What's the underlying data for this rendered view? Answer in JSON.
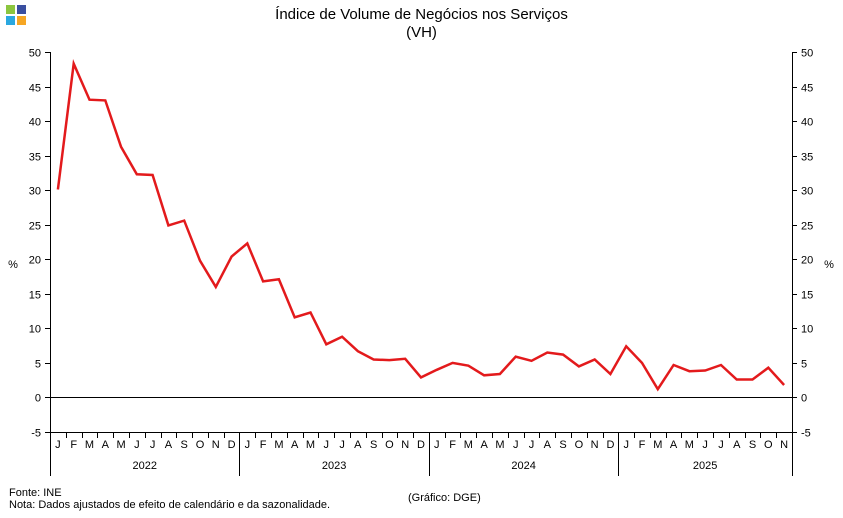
{
  "title": "Índice de Volume de Negócios nos Serviços",
  "subtitle": "(VH)",
  "source": "Fonte: INE",
  "note": "Nota: Dados ajustados de efeito de calendário e da sazonalidade.",
  "credit": "(Gráfico: DGE)",
  "logo": {
    "colors": [
      "#8cc63f",
      "#3a4fa0",
      "#2aa8e0",
      "#f6a623"
    ]
  },
  "chart_data": {
    "type": "line",
    "title": "Índice de Volume de Negócios nos Serviços",
    "subtitle": "(VH)",
    "ylabel": "%",
    "ylabel_right": "%",
    "ylim": [
      -5,
      50
    ],
    "yticks": [
      -5,
      0,
      5,
      10,
      15,
      20,
      25,
      30,
      35,
      40,
      45,
      50
    ],
    "grid": false,
    "line_color": "#e31a1c",
    "month_labels": [
      "J",
      "F",
      "M",
      "A",
      "M",
      "J",
      "J",
      "A",
      "S",
      "O",
      "N",
      "D",
      "J",
      "F",
      "M",
      "A",
      "M",
      "J",
      "J",
      "A",
      "S",
      "O",
      "N",
      "D",
      "J",
      "F",
      "M",
      "A",
      "M",
      "J",
      "J",
      "A",
      "S",
      "O",
      "N",
      "D",
      "J",
      "F",
      "M",
      "A",
      "M",
      "J",
      "J",
      "A",
      "S",
      "O",
      "N"
    ],
    "years": [
      "2022",
      "2023",
      "2024",
      "2025"
    ],
    "series": [
      {
        "values": [
          30.1,
          48.3,
          43.1,
          43.0,
          36.3,
          32.3,
          32.2,
          24.9,
          25.6,
          19.8,
          16.0,
          20.4,
          22.3,
          16.8,
          17.1,
          11.6,
          12.3,
          7.7,
          8.8,
          6.7,
          5.5,
          5.4,
          5.6,
          2.9,
          4.0,
          5.0,
          4.6,
          3.2,
          3.4,
          5.9,
          5.3,
          6.5,
          6.2,
          4.5,
          5.5,
          3.4,
          7.4,
          5.0,
          1.2,
          4.7,
          3.8,
          3.9,
          4.7,
          2.6,
          2.6,
          4.3,
          1.8
        ]
      }
    ]
  }
}
